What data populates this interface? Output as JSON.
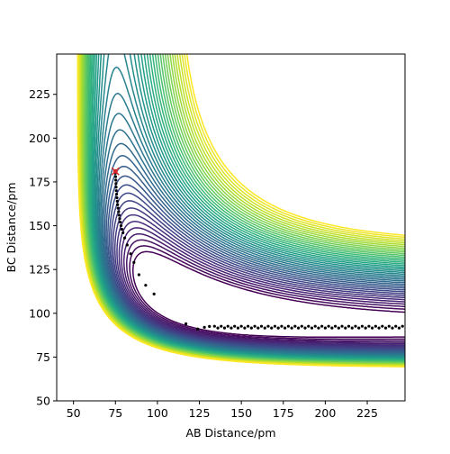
{
  "chart_data": {
    "type": "contour",
    "xlabel": "AB Distance/pm",
    "ylabel": "BC Distance/pm",
    "xlim": [
      40,
      247.5
    ],
    "ylim": [
      50,
      248
    ],
    "xticks": [
      50,
      75,
      100,
      125,
      150,
      175,
      200,
      225
    ],
    "yticks": [
      50,
      75,
      100,
      125,
      150,
      175,
      200,
      225
    ],
    "levels": [
      -582,
      -576,
      -570,
      -564,
      -558,
      -552,
      -546,
      -540,
      -534,
      -528,
      -522,
      -516,
      -510,
      -504,
      -498,
      -492,
      -486,
      -480,
      -474,
      -468,
      -462,
      -456,
      -450,
      -444,
      -438,
      -432,
      -426,
      -420,
      -414,
      -408,
      -402,
      -396,
      -390,
      -384,
      -378,
      -372,
      -366,
      -360,
      -354,
      -348,
      -342,
      -336
    ],
    "colormap": [
      "#440154",
      "#482878",
      "#3e4989",
      "#31688e",
      "#26828e",
      "#1f9e89",
      "#35b779",
      "#6ece58",
      "#b5de2b",
      "#fde725"
    ],
    "trajectory": {
      "color": "#000000",
      "x": [
        75.0,
        75.1,
        75.2,
        75.3,
        75.4,
        75.5,
        75.7,
        75.9,
        76.1,
        76.3,
        76.6,
        76.9,
        77.2,
        77.5,
        77.9,
        78.3,
        78.8,
        79.5,
        80.5,
        82,
        84,
        86,
        89,
        93,
        98,
        117,
        124,
        128,
        131,
        134,
        136,
        138,
        140,
        142,
        144,
        146,
        148,
        150,
        152,
        154,
        156,
        158,
        160,
        162,
        164,
        166,
        168,
        170,
        172,
        174,
        176,
        178,
        180,
        182,
        184,
        186,
        188,
        190,
        192,
        194,
        196,
        198,
        200,
        202,
        204,
        206,
        208,
        210,
        212,
        214,
        216,
        218,
        220,
        222,
        224,
        226,
        228,
        230,
        232,
        234,
        236,
        238,
        240,
        242,
        244,
        246
      ],
      "y": [
        180,
        178,
        176,
        174,
        172,
        170,
        168,
        166,
        164,
        162,
        160,
        158,
        156,
        154,
        152,
        150,
        148,
        146,
        143,
        139,
        134,
        129,
        122,
        116,
        111,
        94,
        91,
        92,
        92.5,
        92.6,
        91.6,
        92.6,
        91.6,
        92.6,
        91.6,
        92.6,
        91.6,
        92.6,
        91.6,
        92.6,
        91.6,
        92.6,
        91.6,
        92.6,
        91.6,
        92.6,
        91.6,
        92.6,
        91.6,
        92.6,
        91.6,
        92.6,
        91.6,
        92.6,
        91.6,
        92.6,
        91.6,
        92.6,
        91.6,
        92.6,
        91.6,
        92.6,
        91.6,
        92.6,
        91.6,
        92.6,
        91.6,
        92.6,
        91.6,
        92.6,
        91.6,
        92.6,
        91.6,
        92.6,
        91.6,
        92.6,
        91.6,
        92.6,
        91.6,
        92.6,
        91.6,
        92.6,
        91.6,
        92.6,
        91.6,
        92.6
      ]
    },
    "marker": {
      "x": 75,
      "y": 181,
      "color": "#d62728"
    }
  }
}
